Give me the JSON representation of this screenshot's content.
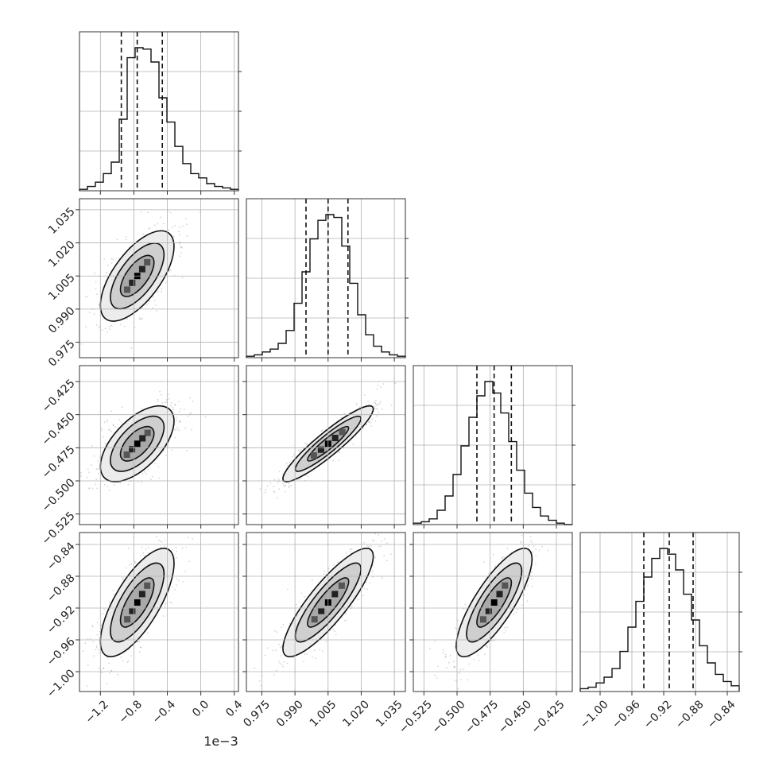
{
  "chart_data": {
    "type": "corner",
    "offset_label": "1e−3",
    "parameters": [
      {
        "range": [
          -1.45,
          0.45
        ],
        "ticks": [
          -1.2,
          -0.8,
          -0.4,
          0.0,
          0.4
        ],
        "tick_labels": [
          "−1.2",
          "−0.8",
          "−0.4",
          "0.0",
          "0.4"
        ],
        "quantiles": [
          -0.95,
          -0.76,
          -0.46
        ],
        "median": -0.76,
        "sd": 0.2
      },
      {
        "range": [
          0.968,
          1.04
        ],
        "ticks": [
          0.975,
          0.99,
          1.005,
          1.02,
          1.035
        ],
        "tick_labels": [
          "0.975",
          "0.990",
          "1.005",
          "1.020",
          "1.035"
        ],
        "quantiles": [
          0.995,
          1.005,
          1.014
        ],
        "median": 1.005,
        "sd": 0.0093
      },
      {
        "range": [
          -0.533,
          -0.413
        ],
        "ticks": [
          -0.525,
          -0.5,
          -0.475,
          -0.45,
          -0.425
        ],
        "tick_labels": [
          "−0.525",
          "−0.500",
          "−0.475",
          "−0.450",
          "−0.425"
        ],
        "quantiles": [
          -0.485,
          -0.472,
          -0.459
        ],
        "median": -0.472,
        "sd": 0.013
      },
      {
        "range": [
          -1.025,
          -0.825
        ],
        "ticks": [
          -1.0,
          -0.96,
          -0.92,
          -0.88,
          -0.84
        ],
        "tick_labels": [
          "−1.00",
          "−0.96",
          "−0.92",
          "−0.88",
          "−0.84"
        ],
        "quantiles": [
          -0.945,
          -0.913,
          -0.883
        ],
        "median": -0.913,
        "sd": 0.031
      }
    ],
    "histograms": [
      [
        0.01,
        0.03,
        0.06,
        0.12,
        0.2,
        0.5,
        0.93,
        1.0,
        0.99,
        0.9,
        0.65,
        0.48,
        0.31,
        0.19,
        0.12,
        0.09,
        0.05,
        0.03,
        0.02,
        0.01
      ],
      [
        0.01,
        0.02,
        0.04,
        0.06,
        0.1,
        0.19,
        0.38,
        0.6,
        0.83,
        0.96,
        1.0,
        0.98,
        0.78,
        0.52,
        0.3,
        0.16,
        0.08,
        0.04,
        0.02,
        0.01
      ],
      [
        0.01,
        0.02,
        0.04,
        0.1,
        0.2,
        0.35,
        0.55,
        0.75,
        0.9,
        1.0,
        0.92,
        0.78,
        0.58,
        0.38,
        0.22,
        0.12,
        0.06,
        0.03,
        0.01,
        0.0
      ],
      [
        0.02,
        0.03,
        0.06,
        0.1,
        0.16,
        0.28,
        0.45,
        0.63,
        0.8,
        0.93,
        1.0,
        0.96,
        0.85,
        0.68,
        0.5,
        0.32,
        0.2,
        0.12,
        0.07,
        0.04
      ]
    ],
    "correlations": {
      "1-0": 0.65,
      "2-0": 0.6,
      "2-1": 0.92,
      "3-0": 0.72,
      "3-1": 0.85,
      "3-2": 0.8
    },
    "contour_sigmas": [
      1.0,
      1.6,
      2.2
    ],
    "grid": true
  }
}
